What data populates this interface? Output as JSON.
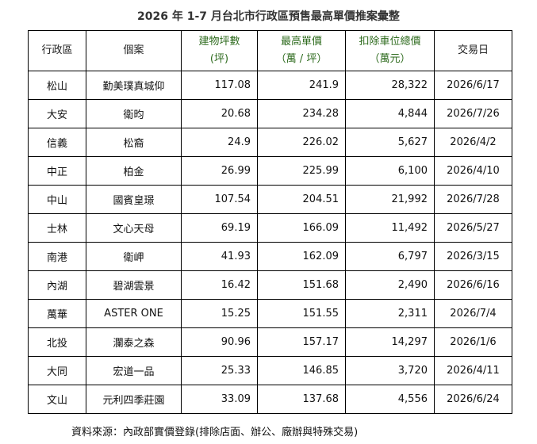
{
  "title": "2026 年 1-7 月台北市行政區預售最高單價推案彙整",
  "headers": {
    "district": "行政區",
    "project": "個案",
    "area_line1": "建物坪數",
    "area_line2": "(坪)",
    "max_price_line1": "最高單價",
    "max_price_line2": "（萬 / 坪）",
    "total_line1": "扣除車位總價",
    "total_line2": "（萬元）",
    "date": "交易日"
  },
  "rows": [
    {
      "district": "松山",
      "project": "勤美璞真城仰",
      "area": "117.08",
      "max_price": "241.9",
      "total": "28,322",
      "date": "2026/6/17"
    },
    {
      "district": "大安",
      "project": "衛昀",
      "area": "20.68",
      "max_price": "234.28",
      "total": "4,844",
      "date": "2026/7/26"
    },
    {
      "district": "信義",
      "project": "松裔",
      "area": "24.9",
      "max_price": "226.02",
      "total": "5,627",
      "date": "2026/4/2"
    },
    {
      "district": "中正",
      "project": "柏金",
      "area": "26.99",
      "max_price": "225.99",
      "total": "6,100",
      "date": "2026/4/10"
    },
    {
      "district": "中山",
      "project": "國賓皇璟",
      "area": "107.54",
      "max_price": "204.51",
      "total": "21,992",
      "date": "2026/7/28"
    },
    {
      "district": "士林",
      "project": "文心天母",
      "area": "69.19",
      "max_price": "166.09",
      "total": "11,492",
      "date": "2026/5/27"
    },
    {
      "district": "南港",
      "project": "衛岬",
      "area": "41.93",
      "max_price": "162.09",
      "total": "6,797",
      "date": "2026/3/15"
    },
    {
      "district": "內湖",
      "project": "碧湖雲景",
      "area": "16.42",
      "max_price": "151.68",
      "total": "2,490",
      "date": "2026/6/16"
    },
    {
      "district": "萬華",
      "project": "ASTER ONE",
      "area": "15.25",
      "max_price": "151.55",
      "total": "2,311",
      "date": "2026/7/4"
    },
    {
      "district": "北投",
      "project": "瀾泰之森",
      "area": "90.96",
      "max_price": "157.17",
      "total": "14,297",
      "date": "2026/1/6"
    },
    {
      "district": "大同",
      "project": "宏道一品",
      "area": "25.33",
      "max_price": "146.85",
      "total": "3,720",
      "date": "2026/4/11"
    },
    {
      "district": "文山",
      "project": "元利四季莊園",
      "area": "33.09",
      "max_price": "137.68",
      "total": "4,556",
      "date": "2026/6/24"
    }
  ],
  "source": "資料來源：內政部實價登錄(排除店面、辦公、廠辦與特殊交易)",
  "colors": {
    "header_accent": "#2e6b1e"
  }
}
